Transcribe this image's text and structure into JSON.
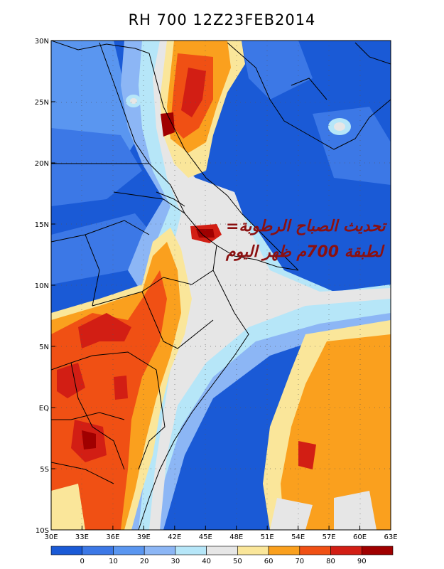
{
  "title": "RH 700 12Z23FEB2014",
  "map": {
    "lat_labels": [
      "30N",
      "25N",
      "20N",
      "15N",
      "10N",
      "5N",
      "EQ",
      "5S",
      "10S"
    ],
    "lon_labels": [
      "30E",
      "33E",
      "36E",
      "39E",
      "42E",
      "45E",
      "48E",
      "51E",
      "54E",
      "57E",
      "60E",
      "63E"
    ],
    "lat_range": [
      -10,
      30
    ],
    "lon_range": [
      30,
      63
    ],
    "grid": "dotted"
  },
  "annotation": {
    "line1": "تحديث الصباح الرطوبة=",
    "line2": "لطبقة 700م ظهر اليوم"
  },
  "colorbar": {
    "labels": [
      "0",
      "10",
      "20",
      "30",
      "40",
      "50",
      "60",
      "70",
      "80",
      "90"
    ],
    "colors": [
      "#1a5ad6",
      "#3c78e6",
      "#5a96f0",
      "#8cb6f5",
      "#b6e6f8",
      "#e6e6e6",
      "#fae69a",
      "#faa01e",
      "#f05014",
      "#d21e14",
      "#a00000"
    ]
  }
}
